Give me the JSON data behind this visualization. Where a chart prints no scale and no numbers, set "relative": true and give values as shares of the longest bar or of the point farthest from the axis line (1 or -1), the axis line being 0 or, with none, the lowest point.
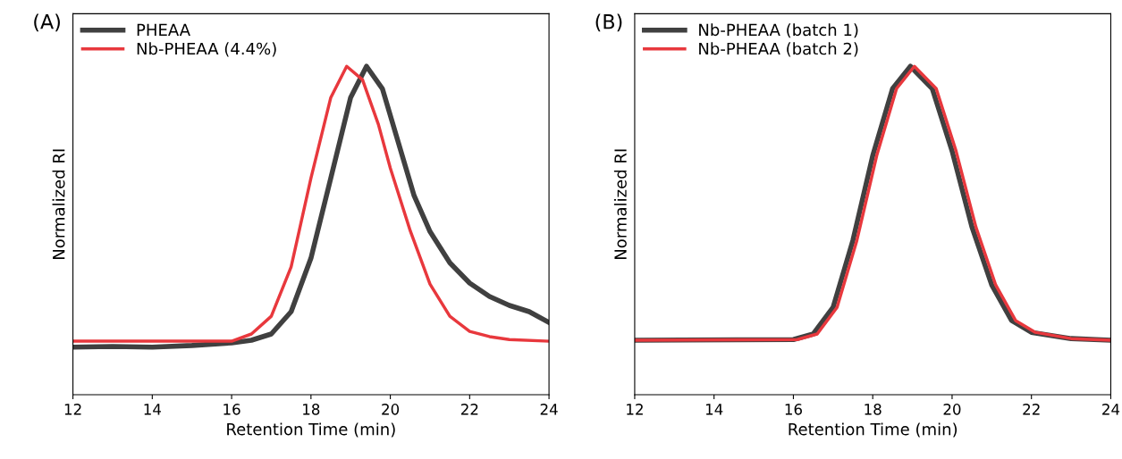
{
  "chart_data": [
    {
      "type": "line",
      "relative": true,
      "xlabel": "Retention Time (min)",
      "ylabel": "Normalized RI",
      "xlim": [
        12,
        24
      ],
      "xticks": [
        12,
        14,
        16,
        18,
        20,
        22,
        24
      ],
      "tick_labels": "x",
      "legend": "top left",
      "grid": false,
      "annotations": [
        "(A)"
      ],
      "series": [
        {
          "name": "PHEAA",
          "color": "#404040",
          "x": [
            12,
            13,
            14,
            15,
            16,
            16.5,
            17,
            17.5,
            18,
            18.5,
            19,
            19.4,
            19.8,
            20.2,
            20.6,
            21,
            21.5,
            22,
            22.5,
            23,
            23.5,
            24
          ],
          "values": [
            0.145,
            0.147,
            0.145,
            0.15,
            0.158,
            0.166,
            0.185,
            0.253,
            0.416,
            0.66,
            0.905,
            1.0,
            0.932,
            0.769,
            0.606,
            0.497,
            0.402,
            0.34,
            0.299,
            0.272,
            0.253,
            0.22
          ]
        },
        {
          "name": "Nb-PHEAA (4.4%)",
          "color": "#e8383d",
          "x": [
            12,
            14,
            16,
            16.5,
            17,
            17.5,
            18,
            18.5,
            18.9,
            19.3,
            19.7,
            20,
            20.5,
            21,
            21.5,
            22,
            22.5,
            23,
            24
          ],
          "values": [
            0.163,
            0.163,
            0.163,
            0.185,
            0.239,
            0.389,
            0.66,
            0.905,
            1.0,
            0.959,
            0.823,
            0.69,
            0.5,
            0.337,
            0.239,
            0.193,
            0.177,
            0.168,
            0.163
          ]
        }
      ]
    },
    {
      "type": "line",
      "relative": true,
      "xlabel": "Retention Time (min)",
      "ylabel": "Normalized RI",
      "xlim": [
        12,
        24
      ],
      "xticks": [
        12,
        14,
        16,
        18,
        20,
        22,
        24
      ],
      "tick_labels": "x",
      "legend": "top left",
      "grid": false,
      "annotations": [
        "(B)"
      ],
      "series": [
        {
          "name": "Nb-PHEAA (batch 1)",
          "color": "#404040",
          "x": [
            12,
            16,
            16.5,
            17,
            17.5,
            18,
            18.5,
            18.95,
            19.5,
            20,
            20.5,
            21,
            21.5,
            22,
            23,
            24
          ],
          "values": [
            0.166,
            0.168,
            0.185,
            0.266,
            0.47,
            0.728,
            0.932,
            1.0,
            0.932,
            0.742,
            0.511,
            0.334,
            0.226,
            0.19,
            0.171,
            0.166
          ]
        },
        {
          "name": "Nb-PHEAA (batch 2)",
          "color": "#e8383d",
          "x": [
            12,
            16.1,
            16.6,
            17.1,
            17.6,
            18.1,
            18.6,
            19.05,
            19.6,
            20.1,
            20.6,
            21.1,
            21.6,
            22.1,
            23,
            24
          ],
          "values": [
            0.166,
            0.168,
            0.185,
            0.266,
            0.47,
            0.728,
            0.932,
            1.0,
            0.932,
            0.742,
            0.511,
            0.334,
            0.226,
            0.19,
            0.171,
            0.166
          ]
        }
      ]
    }
  ]
}
